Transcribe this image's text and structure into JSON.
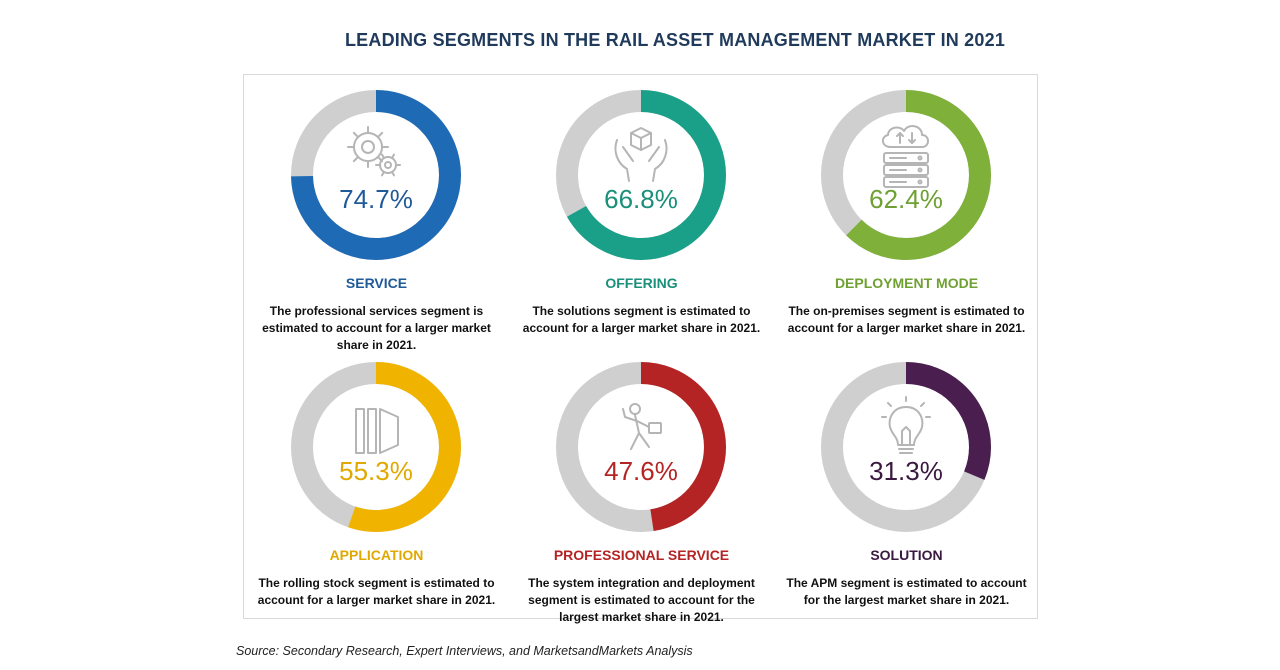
{
  "title": "LEADING SEGMENTS IN THE RAIL ASSET MANAGEMENT MARKET IN 2021",
  "source": "Source: Secondary Research, Expert Interviews, and MarketsandMarkets Analysis",
  "colors": {
    "track": "#cfcfcf",
    "title": "#1f3a5a"
  },
  "chart_data": {
    "type": "donut",
    "title": "LEADING SEGMENTS IN THE RAIL ASSET MANAGEMENT MARKET IN 2021",
    "max": 100,
    "items": [
      {
        "label": "SERVICE",
        "value": 74.7,
        "value_text": "74.7%",
        "color": "#1f6ab5",
        "text_color": "#1f5a99",
        "icon": "gears-icon",
        "description": "The professional services segment is estimated to account for a larger market share in 2021."
      },
      {
        "label": "OFFERING",
        "value": 66.8,
        "value_text": "66.8%",
        "color": "#1aa088",
        "text_color": "#1a8f7a",
        "icon": "hands-box-icon",
        "description": "The solutions segment is estimated to account for a larger market share in 2021."
      },
      {
        "label": "DEPLOYMENT MODE",
        "value": 62.4,
        "value_text": "62.4%",
        "color": "#7fb03a",
        "text_color": "#6ea032",
        "icon": "cloud-server-icon",
        "description": "The on-premises segment is estimated to account for a larger market share in 2021."
      },
      {
        "label": "APPLICATION",
        "value": 55.3,
        "value_text": "55.3%",
        "color": "#f0b400",
        "text_color": "#e0a800",
        "icon": "rolling-stock-icon",
        "description": "The rolling stock segment is estimated to account for a larger market share in 2021."
      },
      {
        "label": "PROFESSIONAL SERVICE",
        "value": 47.6,
        "value_text": "47.6%",
        "color": "#b52424",
        "text_color": "#b52424",
        "icon": "worker-icon",
        "description": "The system integration and deployment segment is estimated to account for the largest market share in 2021."
      },
      {
        "label": "SOLUTION",
        "value": 31.3,
        "value_text": "31.3%",
        "color": "#4a1e4e",
        "text_color": "#3a1840",
        "icon": "lightbulb-icon",
        "description": "The APM segment is estimated to account for the largest market share in 2021."
      }
    ]
  }
}
